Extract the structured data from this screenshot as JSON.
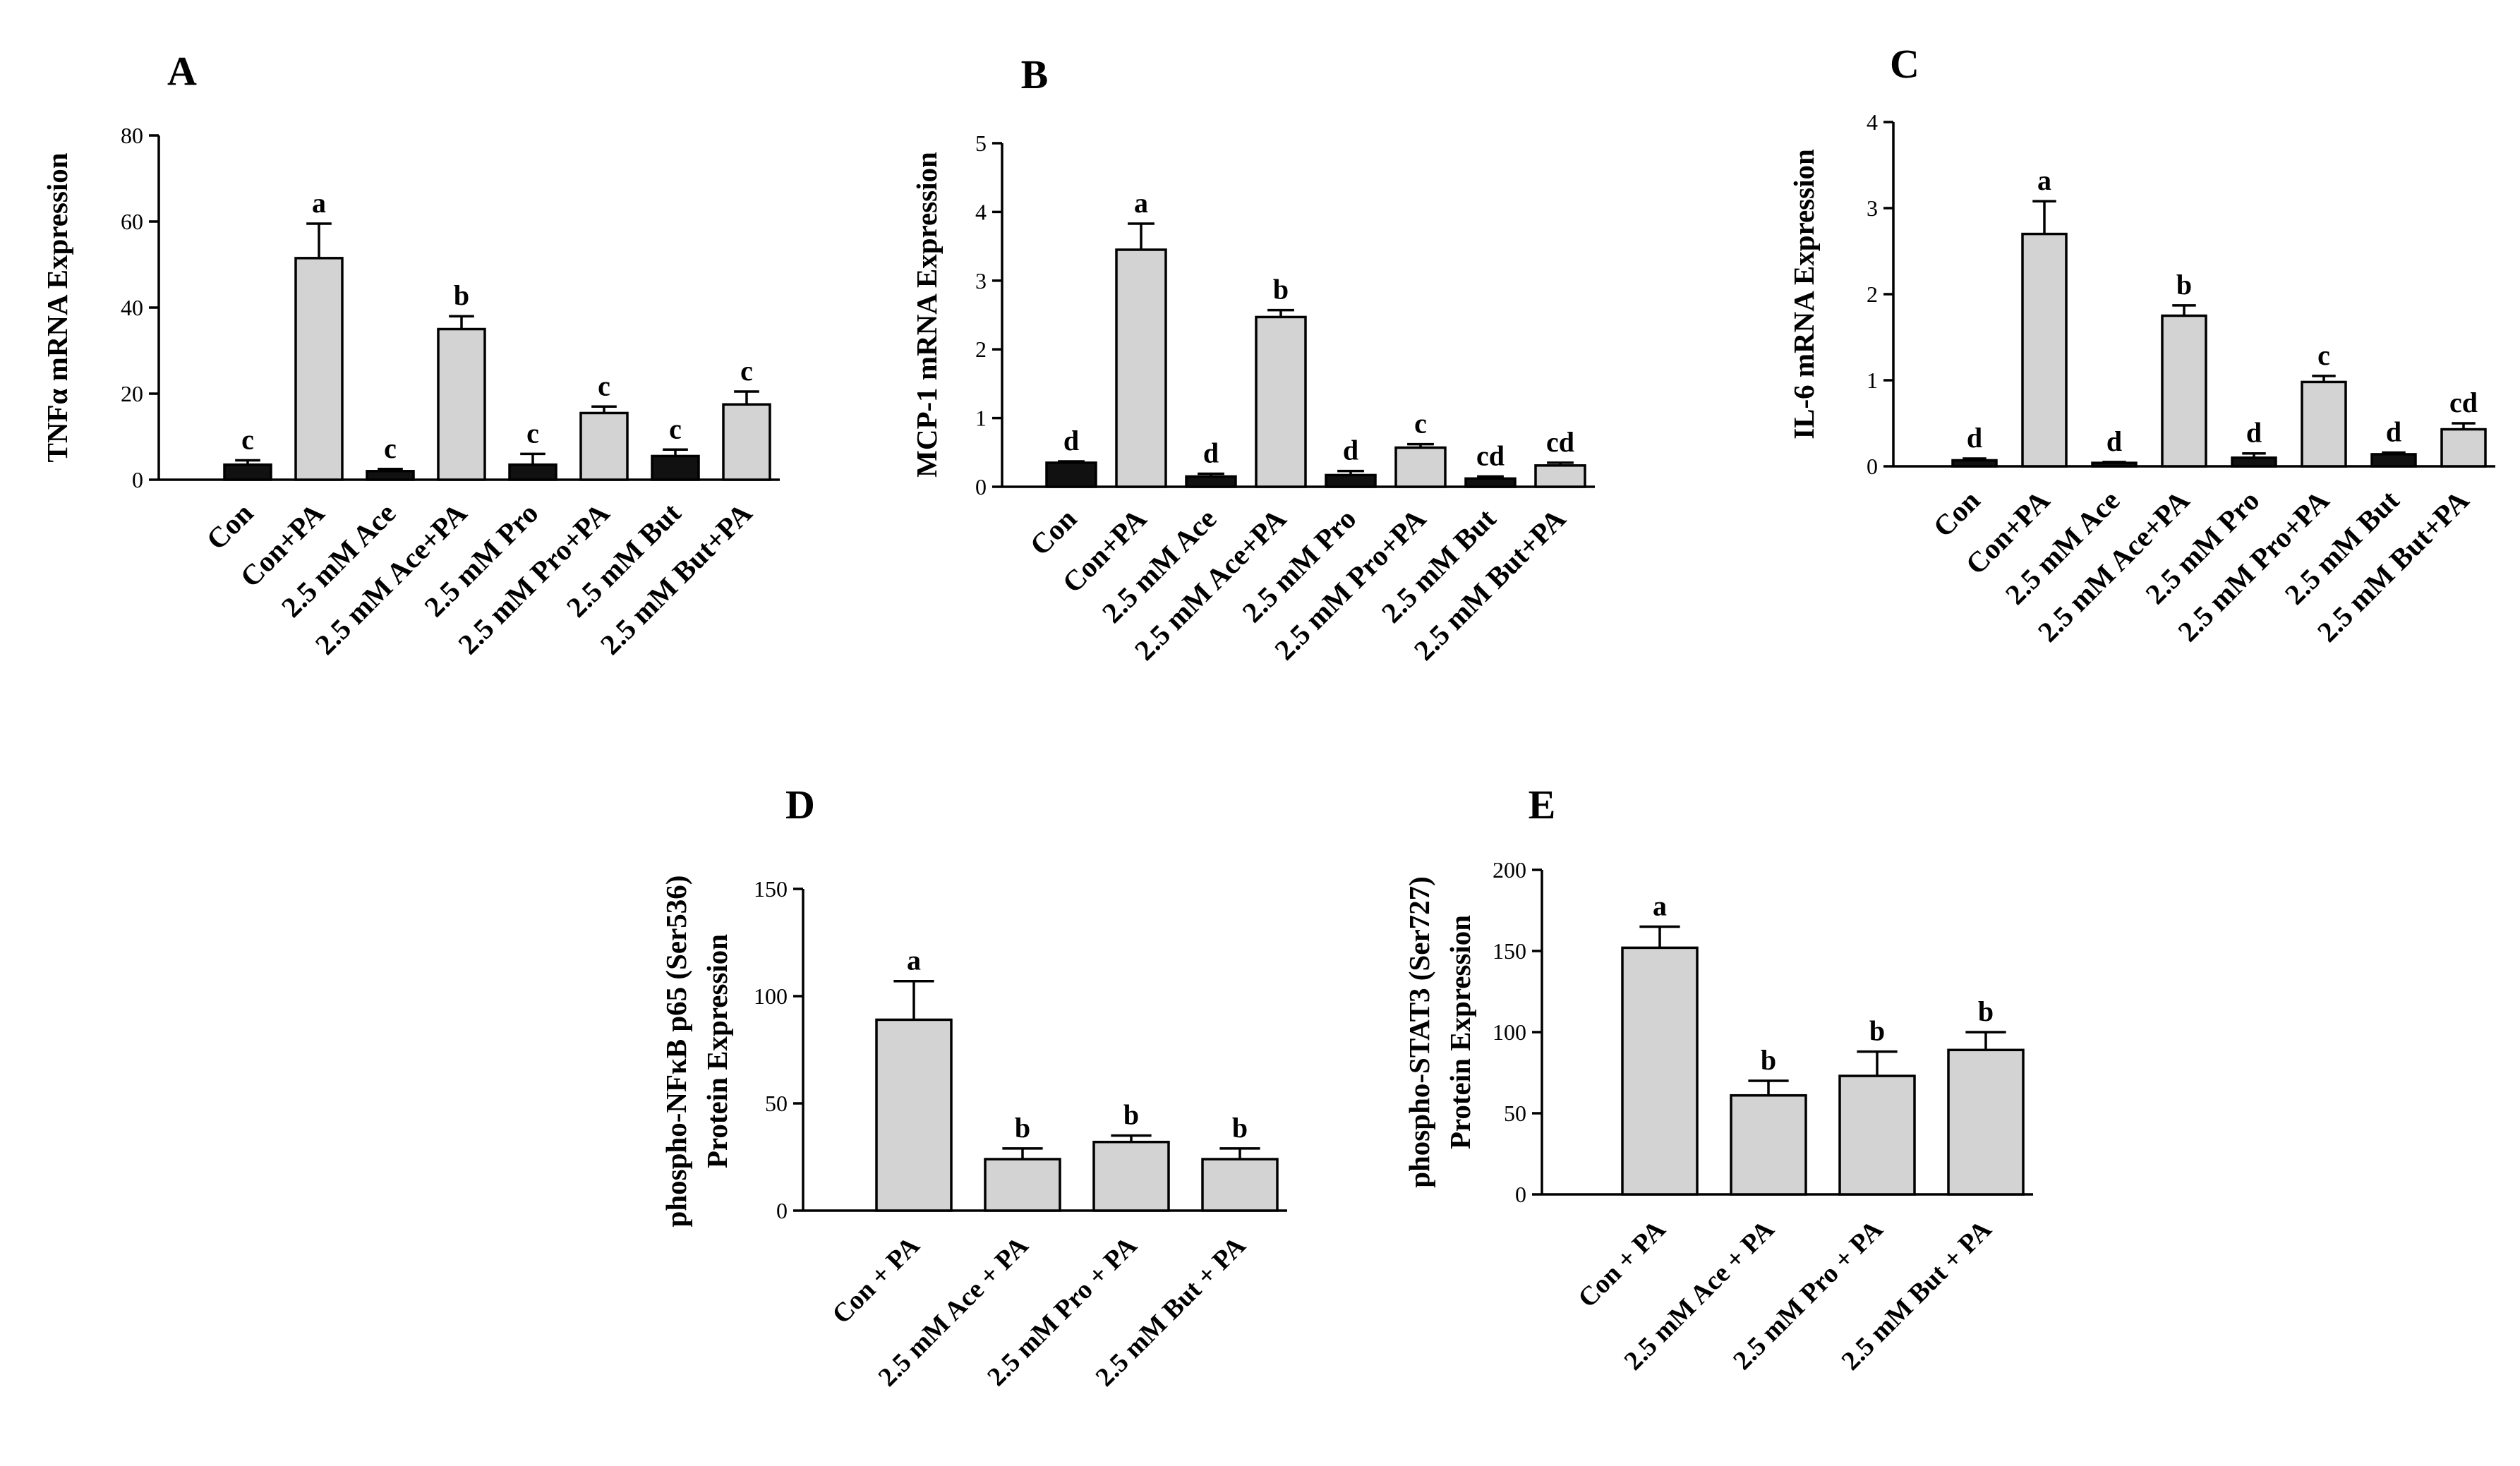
{
  "figure": {
    "colors": {
      "dark_bar": "#111111",
      "light_bar": "#d3d3d3",
      "axis": "#000000",
      "text": "#000000"
    }
  },
  "chart_data": [
    {
      "panel": "A",
      "type": "bar",
      "ylabel": "TNFα mRNA Expression",
      "ylim": [
        0,
        80
      ],
      "yticks": [
        "0",
        "20",
        "40",
        "60",
        "80"
      ],
      "categories": [
        "Con",
        "Con+PA",
        "2.5 mM Ace",
        "2.5 mM Ace+PA",
        "2.5 mM Pro",
        "2.5 mM Pro+PA",
        "2.5 mM But",
        "2.5 mM But+PA"
      ],
      "values": [
        3.5,
        51.5,
        2,
        35,
        3.5,
        15.5,
        5.5,
        17.5
      ],
      "errors": [
        1,
        8,
        0.5,
        3,
        2.5,
        1.5,
        1.5,
        3
      ],
      "labels": [
        "c",
        "a",
        "c",
        "b",
        "c",
        "c",
        "c",
        "c"
      ],
      "fills": [
        "dark",
        "light",
        "dark",
        "light",
        "dark",
        "light",
        "dark",
        "light"
      ]
    },
    {
      "panel": "B",
      "type": "bar",
      "ylabel": "MCP-1 mRNA Expression",
      "ylim": [
        0,
        5
      ],
      "yticks": [
        "0",
        "1",
        "2",
        "3",
        "4",
        "5"
      ],
      "categories": [
        "Con",
        "Con+PA",
        "2.5 mM Ace",
        "2.5 mM Ace+PA",
        "2.5 mM Pro",
        "2.5 mM Pro+PA",
        "2.5 mM But",
        "2.5 mM But+PA"
      ],
      "values": [
        0.35,
        3.45,
        0.15,
        2.47,
        0.17,
        0.57,
        0.12,
        0.31
      ],
      "errors": [
        0.02,
        0.38,
        0.04,
        0.1,
        0.06,
        0.05,
        0.03,
        0.04
      ],
      "labels": [
        "d",
        "a",
        "d",
        "b",
        "d",
        "c",
        "cd",
        "cd"
      ],
      "fills": [
        "dark",
        "light",
        "dark",
        "light",
        "dark",
        "light",
        "dark",
        "light"
      ]
    },
    {
      "panel": "C",
      "type": "bar",
      "ylabel": "IL-6 mRNA Expression",
      "ylim": [
        0,
        4
      ],
      "yticks": [
        "0",
        "1",
        "2",
        "3",
        "4"
      ],
      "categories": [
        "Con",
        "Con+PA",
        "2.5 mM Ace",
        "2.5 mM Ace+PA",
        "2.5 mM Pro",
        "2.5 mM Pro+PA",
        "2.5 mM But",
        "2.5 mM But+PA"
      ],
      "values": [
        0.07,
        2.7,
        0.04,
        1.75,
        0.1,
        0.98,
        0.14,
        0.43
      ],
      "errors": [
        0.02,
        0.38,
        0.01,
        0.12,
        0.05,
        0.07,
        0.02,
        0.07
      ],
      "labels": [
        "d",
        "a",
        "d",
        "b",
        "d",
        "c",
        "d",
        "cd"
      ],
      "fills": [
        "dark",
        "light",
        "dark",
        "light",
        "dark",
        "light",
        "dark",
        "light"
      ]
    },
    {
      "panel": "D",
      "type": "bar",
      "ylabel": "phospho-NFκB p65 (Ser536)",
      "ylabel2": "Protein Expression",
      "ylim": [
        0,
        150
      ],
      "yticks": [
        "0",
        "50",
        "100",
        "150"
      ],
      "categories": [
        "Con + PA",
        "2.5 mM Ace + PA",
        "2.5 mM Pro + PA",
        "2.5 mM But + PA"
      ],
      "values": [
        89,
        24,
        32,
        24
      ],
      "errors": [
        18,
        5,
        3,
        5
      ],
      "labels": [
        "a",
        "b",
        "b",
        "b"
      ],
      "fills": [
        "light",
        "light",
        "light",
        "light"
      ]
    },
    {
      "panel": "E",
      "type": "bar",
      "ylabel": "phospho-STAT3  (Ser727)",
      "ylabel2": "Protein Expression",
      "ylim": [
        0,
        200
      ],
      "yticks": [
        "0",
        "50",
        "100",
        "150",
        "200"
      ],
      "categories": [
        "Con + PA",
        "2.5 mM Ace + PA",
        "2.5 mM Pro + PA",
        "2.5 mM But + PA"
      ],
      "values": [
        152,
        61,
        73,
        89
      ],
      "errors": [
        13,
        9,
        15,
        11
      ],
      "labels": [
        "a",
        "b",
        "b",
        "b"
      ],
      "fills": [
        "light",
        "light",
        "light",
        "light"
      ]
    }
  ]
}
